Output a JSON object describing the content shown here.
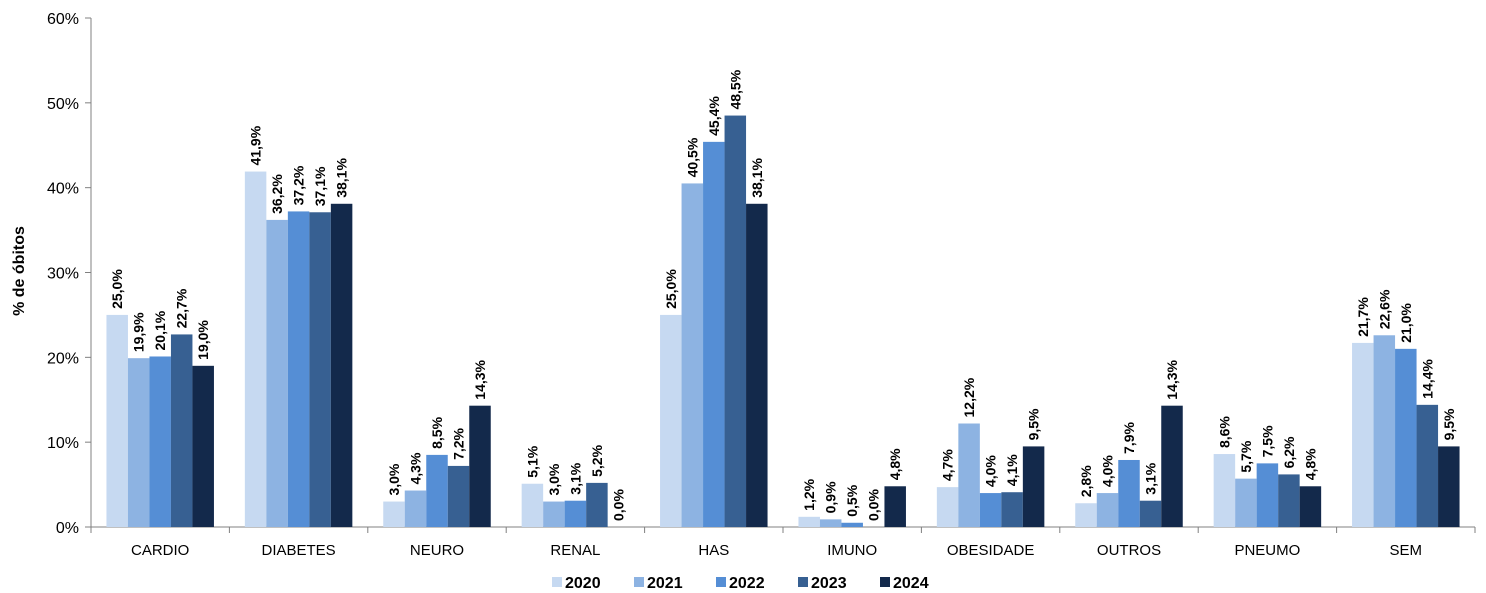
{
  "chart_data": {
    "type": "bar",
    "ylabel": "% de óbitos",
    "ylim": [
      0,
      60
    ],
    "y_ticks": [
      "0%",
      "10%",
      "20%",
      "30%",
      "40%",
      "50%",
      "60%"
    ],
    "categories": [
      "CARDIO",
      "DIABETES",
      "NEURO",
      "RENAL",
      "HAS",
      "IMUNO",
      "OBESIDADE",
      "OUTROS",
      "PNEUMO",
      "SEM"
    ],
    "legend_position": "bottom",
    "series": [
      {
        "name": "2020",
        "color": "#c6d9f1",
        "values": [
          25.0,
          41.9,
          3.0,
          5.1,
          25.0,
          1.2,
          4.7,
          2.8,
          8.6,
          21.7
        ],
        "labels": [
          "25,0%",
          "41,9%",
          "3,0%",
          "5,1%",
          "25,0%",
          "1,2%",
          "4,7%",
          "2,8%",
          "8,6%",
          "21,7%"
        ]
      },
      {
        "name": "2021",
        "color": "#8db3e2",
        "values": [
          19.9,
          36.2,
          4.3,
          3.0,
          40.5,
          0.9,
          12.2,
          4.0,
          5.7,
          22.6
        ],
        "labels": [
          "19,9%",
          "36,2%",
          "4,3%",
          "3,0%",
          "40,5%",
          "0,9%",
          "12,2%",
          "4,0%",
          "5,7%",
          "22,6%"
        ]
      },
      {
        "name": "2022",
        "color": "#558ed5",
        "values": [
          20.1,
          37.2,
          8.5,
          3.1,
          45.4,
          0.5,
          4.0,
          7.9,
          7.5,
          21.0
        ],
        "labels": [
          "20,1%",
          "37,2%",
          "8,5%",
          "3,1%",
          "45,4%",
          "0,5%",
          "4,0%",
          "7,9%",
          "7,5%",
          "21,0%"
        ]
      },
      {
        "name": "2023",
        "color": "#376092",
        "values": [
          22.7,
          37.1,
          7.2,
          5.2,
          48.5,
          0.0,
          4.1,
          3.1,
          6.2,
          14.4
        ],
        "labels": [
          "22,7%",
          "37,1%",
          "7,2%",
          "5,2%",
          "48,5%",
          "0,0%",
          "4,1%",
          "3,1%",
          "6,2%",
          "14,4%"
        ]
      },
      {
        "name": "2024",
        "color": "#13294b",
        "values": [
          19.0,
          38.1,
          14.3,
          0.0,
          38.1,
          4.8,
          9.5,
          14.3,
          4.8,
          9.5
        ],
        "labels": [
          "19,0%",
          "38,1%",
          "14,3%",
          "0,0%",
          "38,1%",
          "4,8%",
          "9,5%",
          "14,3%",
          "4,8%",
          "9,5%"
        ]
      }
    ]
  }
}
